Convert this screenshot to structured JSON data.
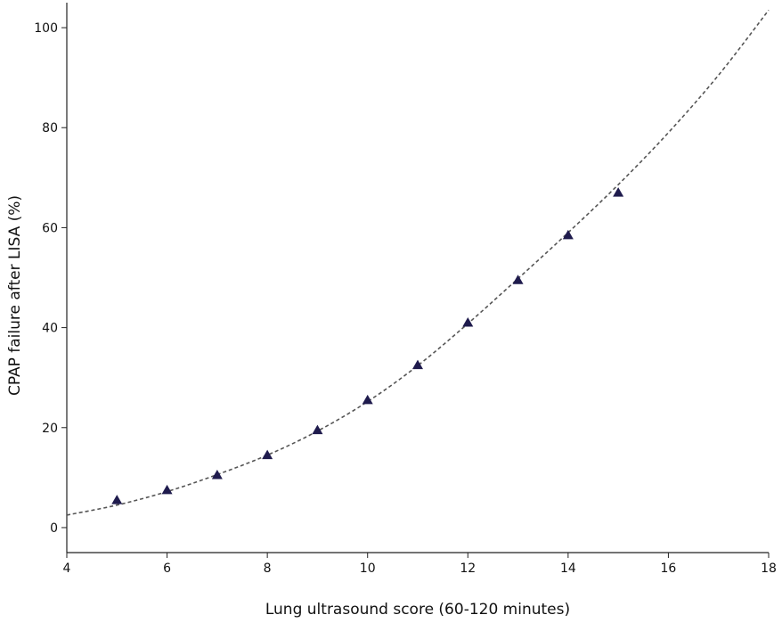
{
  "chart_data": {
    "type": "scatter",
    "title": "",
    "xlabel": "Lung ultrasound score (60-120 minutes)",
    "ylabel": "CPAP failure after LISA (%)",
    "xlim": [
      4,
      18
    ],
    "ylim": [
      -5,
      105
    ],
    "x_ticks": [
      4,
      6,
      8,
      10,
      12,
      14,
      16,
      18
    ],
    "y_ticks": [
      0,
      20,
      40,
      60,
      80,
      100
    ],
    "grid": false,
    "legend": "none",
    "series": [
      {
        "marker": "triangle",
        "color": "#1f1b4d",
        "x": [
          5,
          6,
          7,
          8,
          9,
          10,
          11,
          12,
          13,
          14,
          15
        ],
        "y": [
          5.5,
          7.5,
          10.5,
          14.5,
          19.5,
          25.5,
          32.5,
          41,
          49.5,
          58.5,
          67
        ]
      }
    ],
    "fit_curve": {
      "style": "dashed",
      "color": "#555555",
      "x": [
        4,
        5,
        6,
        7,
        8,
        9,
        10,
        11,
        12,
        13,
        14,
        15,
        16,
        17,
        18
      ],
      "y": [
        2.5,
        4.5,
        7.2,
        10.6,
        14.5,
        19.3,
        25.2,
        32.4,
        40.8,
        49.8,
        59.0,
        68.6,
        79.0,
        90.5,
        103.5
      ]
    }
  }
}
